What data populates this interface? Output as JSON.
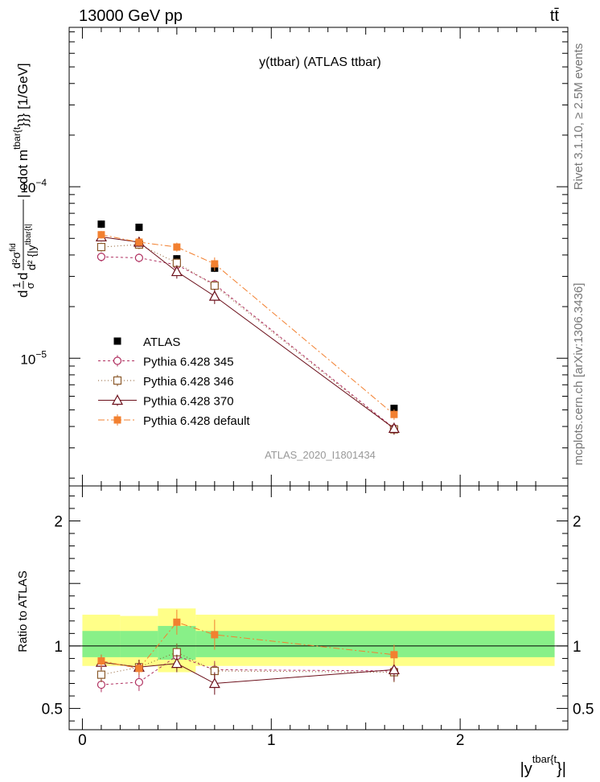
{
  "header": {
    "left": "13000 GeV pp",
    "right": "tt̄"
  },
  "side_labels": {
    "rivet": "Rivet 3.1.10, ≥ 2.5M events",
    "mcplots": "mcplots.cern.ch [arXiv:1306.3436]"
  },
  "chart_data": [
    {
      "type": "scatter",
      "title": "y(ttbar) (ATLAS ttbar)",
      "watermark": "ATLAS_2020_I1801434",
      "ylabel_parts": {
        "frac1_num": "1",
        "frac1_den": "σ",
        "d": "d",
        "frac2_num": "d²σ",
        "frac2_num_sup": "fid",
        "frac2_den": "d² {|y",
        "frac2_den_sup": "tbar{t|",
        "tail": "| cdot m",
        "tail_sup": "tbar{t",
        "end": "}}} [1/GeV]"
      },
      "yscale": "log",
      "ylim": [
        1.8e-06,
        0.00085
      ],
      "xlim": [
        -0.07,
        2.57
      ],
      "y_ticks": [
        {
          "value": 1e-05,
          "base": "10",
          "exp": "−5"
        },
        {
          "value": 0.0001,
          "base": "10",
          "exp": "−4"
        }
      ],
      "legend_position": "lower-left",
      "x": [
        0.1,
        0.3,
        0.5,
        0.7,
        1.65
      ],
      "series": [
        {
          "name": "ATLAS",
          "color": "#000000",
          "marker": "square",
          "values": [
            6.05e-05,
            5.8e-05,
            3.8e-05,
            3.35e-05,
            5.1e-06
          ],
          "yerr": [
            0.05,
            0.05,
            0.05,
            0.05,
            0.05
          ]
        },
        {
          "name": "Pythia 6.428 345",
          "color": "#b03060",
          "marker": "circle-open",
          "dash": "3,3",
          "values": [
            3.9e-05,
            3.85e-05,
            3.5e-05,
            2.7e-05,
            3.9e-06
          ],
          "yerr": [
            0.06,
            0.06,
            0.06,
            0.06,
            0.07
          ]
        },
        {
          "name": "Pythia 6.428 346",
          "color": "#8b5a2b",
          "marker": "square-open",
          "dash": "1,3",
          "values": [
            4.45e-05,
            4.6e-05,
            3.6e-05,
            2.65e-05,
            3.85e-06
          ],
          "yerr": [
            0.06,
            0.06,
            0.06,
            0.06,
            0.07
          ]
        },
        {
          "name": "Pythia 6.428 370",
          "color": "#6b0f1a",
          "marker": "triangle-open",
          "dash": "",
          "values": [
            5.1e-05,
            4.75e-05,
            3.2e-05,
            2.3e-05,
            3.9e-06
          ],
          "yerr": [
            0.06,
            0.06,
            0.09,
            0.1,
            0.08
          ]
        },
        {
          "name": "Pythia 6.428 default",
          "color": "#f28030",
          "marker": "square",
          "dash": "8,3,2,3",
          "values": [
            5.25e-05,
            4.75e-05,
            4.45e-05,
            3.55e-05,
            4.7e-06
          ],
          "yerr": [
            0.05,
            0.05,
            0.06,
            0.09,
            0.07
          ]
        }
      ]
    },
    {
      "type": "scatter",
      "ylabel": "Ratio to ATLAS",
      "xlabel_base": "|y",
      "xlabel_sup": "tbar{t",
      "xlabel_end": "}|",
      "ylim": [
        0.33,
        2.28
      ],
      "xlim": [
        -0.07,
        2.57
      ],
      "y_ticks": [
        {
          "value": 0.5,
          "label": "0.5"
        },
        {
          "value": 1,
          "label": "1"
        },
        {
          "value": 2,
          "label": "2"
        }
      ],
      "x_ticks": [
        {
          "value": 0,
          "label": "0"
        },
        {
          "value": 1,
          "label": "1"
        },
        {
          "value": 2,
          "label": "2"
        }
      ],
      "bands": [
        {
          "x0": 0.0,
          "x1": 0.2,
          "stat_lo": 0.91,
          "stat_hi": 1.12,
          "tot_lo": 0.84,
          "tot_hi": 1.25
        },
        {
          "x0": 0.2,
          "x1": 0.4,
          "stat_lo": 0.91,
          "stat_hi": 1.12,
          "tot_lo": 0.84,
          "tot_hi": 1.24
        },
        {
          "x0": 0.4,
          "x1": 0.6,
          "stat_lo": 0.89,
          "stat_hi": 1.16,
          "tot_lo": 0.79,
          "tot_hi": 1.3
        },
        {
          "x0": 0.6,
          "x1": 2.5,
          "stat_lo": 0.91,
          "stat_hi": 1.12,
          "tot_lo": 0.84,
          "tot_hi": 1.25
        }
      ],
      "x": [
        0.1,
        0.3,
        0.5,
        0.7,
        1.65
      ],
      "series": [
        {
          "name": "Pythia 6.428 345",
          "color": "#b03060",
          "marker": "circle-open",
          "dash": "3,3",
          "values": [
            0.69,
            0.71,
            0.92,
            0.81,
            0.8
          ],
          "yerr": [
            0.06,
            0.07,
            0.07,
            0.07,
            0.08
          ]
        },
        {
          "name": "Pythia 6.428 346",
          "color": "#8b5a2b",
          "marker": "square-open",
          "dash": "1,3",
          "values": [
            0.77,
            0.83,
            0.95,
            0.8,
            0.79
          ],
          "yerr": [
            0.06,
            0.06,
            0.07,
            0.06,
            0.08
          ]
        },
        {
          "name": "Pythia 6.428 370",
          "color": "#6b0f1a",
          "marker": "triangle-open",
          "dash": "",
          "values": [
            0.87,
            0.83,
            0.86,
            0.7,
            0.81
          ],
          "yerr": [
            0.06,
            0.06,
            0.07,
            0.09,
            0.09
          ]
        },
        {
          "name": "Pythia 6.428 default",
          "color": "#f28030",
          "marker": "square",
          "dash": "8,3,2,3",
          "values": [
            0.88,
            0.82,
            1.19,
            1.09,
            0.93
          ],
          "yerr": [
            0.05,
            0.05,
            0.1,
            0.12,
            0.08
          ]
        }
      ]
    }
  ]
}
